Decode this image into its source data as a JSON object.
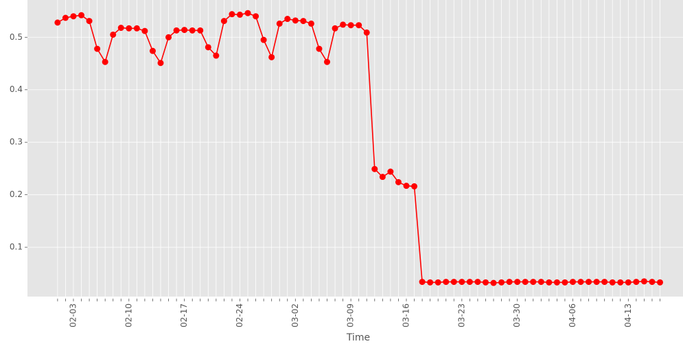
{
  "chart_data": {
    "type": "line",
    "x_label": "Time",
    "categories": [
      null,
      null,
      "02-03",
      null,
      null,
      null,
      null,
      null,
      null,
      "02-10",
      null,
      null,
      null,
      null,
      null,
      null,
      "02-17",
      null,
      null,
      null,
      null,
      null,
      null,
      "02-24",
      null,
      null,
      null,
      null,
      null,
      null,
      "03-02",
      null,
      null,
      null,
      null,
      null,
      null,
      "03-09",
      null,
      null,
      null,
      null,
      null,
      null,
      "03-16",
      null,
      null,
      null,
      null,
      null,
      null,
      "03-23",
      null,
      null,
      null,
      null,
      null,
      null,
      "03-30",
      null,
      null,
      null,
      null,
      null,
      null,
      "04-06",
      null,
      null,
      null,
      null,
      null,
      null,
      "04-13",
      null,
      null,
      null,
      null
    ],
    "values": [
      0.528,
      0.537,
      0.54,
      0.542,
      0.531,
      0.478,
      0.453,
      0.505,
      0.518,
      0.517,
      0.517,
      0.512,
      0.474,
      0.451,
      0.5,
      0.513,
      0.514,
      0.513,
      0.513,
      0.481,
      0.465,
      0.531,
      0.544,
      0.543,
      0.546,
      0.54,
      0.495,
      0.462,
      0.526,
      0.535,
      0.532,
      0.531,
      0.526,
      0.478,
      0.453,
      0.517,
      0.524,
      0.523,
      0.523,
      0.509,
      0.249,
      0.234,
      0.244,
      0.224,
      0.217,
      0.216,
      0.034,
      0.033,
      0.033,
      0.034,
      0.034,
      0.034,
      0.034,
      0.034,
      0.033,
      0.032,
      0.033,
      0.034,
      0.034,
      0.034,
      0.034,
      0.034,
      0.033,
      0.033,
      0.033,
      0.034,
      0.034,
      0.034,
      0.034,
      0.034,
      0.033,
      0.033,
      0.033,
      0.034,
      0.035,
      0.034,
      0.033
    ],
    "color": "#ff0000",
    "ylim": [
      0.006,
      0.571
    ],
    "yticks": [
      0.1,
      0.2,
      0.3,
      0.4,
      0.5
    ],
    "grid": true
  }
}
